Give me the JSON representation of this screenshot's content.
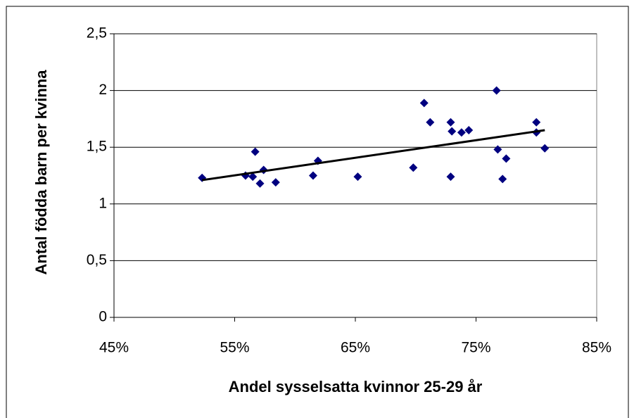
{
  "chart_data": {
    "type": "scatter",
    "x_label": "Andel sysselsatta kvinnor 25-29 år",
    "y_label": "Antal födda barn per kvinna",
    "x": [
      52.3,
      55.9,
      56.5,
      56.7,
      57.1,
      57.4,
      58.4,
      61.5,
      61.9,
      65.2,
      69.8,
      70.7,
      71.2,
      72.9,
      73.0,
      72.9,
      73.8,
      74.4,
      76.7,
      76.8,
      77.2,
      77.5,
      80.0,
      80.0,
      80.7
    ],
    "values": [
      1.23,
      1.25,
      1.24,
      1.46,
      1.18,
      1.3,
      1.19,
      1.25,
      1.38,
      1.24,
      1.32,
      1.89,
      1.72,
      1.72,
      1.64,
      1.24,
      1.63,
      1.65,
      2.0,
      1.48,
      1.22,
      1.4,
      1.72,
      1.63,
      1.49
    ],
    "color": "#000080",
    "trendline": {
      "x": [
        52.3,
        80.7
      ],
      "y": [
        1.21,
        1.65
      ],
      "color": "#000000"
    },
    "xlim": [
      45,
      85
    ],
    "xticks": [
      {
        "value": 45,
        "label": "45%"
      },
      {
        "value": 55,
        "label": "55%"
      },
      {
        "value": 65,
        "label": "65%"
      },
      {
        "value": 75,
        "label": "75%"
      },
      {
        "value": 85,
        "label": "85%"
      }
    ],
    "ylim": [
      0,
      2.5
    ],
    "yticks": [
      0,
      {
        "value": 0.5,
        "label": "0,5"
      },
      1,
      {
        "value": 1.5,
        "label": "1,5"
      },
      2,
      {
        "value": 2.5,
        "label": "2,5"
      }
    ],
    "grid": true
  }
}
